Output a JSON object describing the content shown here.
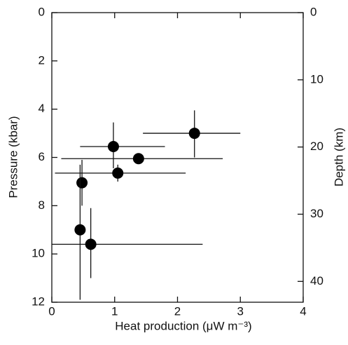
{
  "chart_data": {
    "type": "scatter",
    "x_label": "Heat production (μW m⁻³)",
    "y_label": "Pressure (kbar)",
    "y2_label": "Depth (km)",
    "xlim": [
      0,
      4
    ],
    "xticks": [
      0,
      1,
      2,
      3,
      4
    ],
    "ylim": [
      0,
      12
    ],
    "yticks": [
      0,
      2,
      4,
      6,
      8,
      10,
      12
    ],
    "y_reversed": true,
    "y2lim": [
      0,
      43.1
    ],
    "y2ticks": [
      0,
      10,
      20,
      30,
      40
    ],
    "y2_reversed": true,
    "series": [
      {
        "color": "#000000",
        "x": [
          2.27,
          0.98,
          1.38,
          1.05,
          0.48,
          0.45,
          0.62
        ],
        "y": [
          5.0,
          5.55,
          6.05,
          6.65,
          7.05,
          9.0,
          9.6
        ],
        "x_lo": [
          1.45,
          0.45,
          0.15,
          0.05,
          null,
          null,
          0.0
        ],
        "x_hi": [
          3.0,
          1.8,
          2.72,
          2.13,
          null,
          null,
          2.4
        ],
        "y_lo": [
          4.05,
          4.55,
          null,
          6.3,
          6.1,
          6.3,
          8.1
        ],
        "y_hi": [
          6.0,
          6.45,
          null,
          7.0,
          8.0,
          11.9,
          11.0
        ]
      }
    ]
  }
}
